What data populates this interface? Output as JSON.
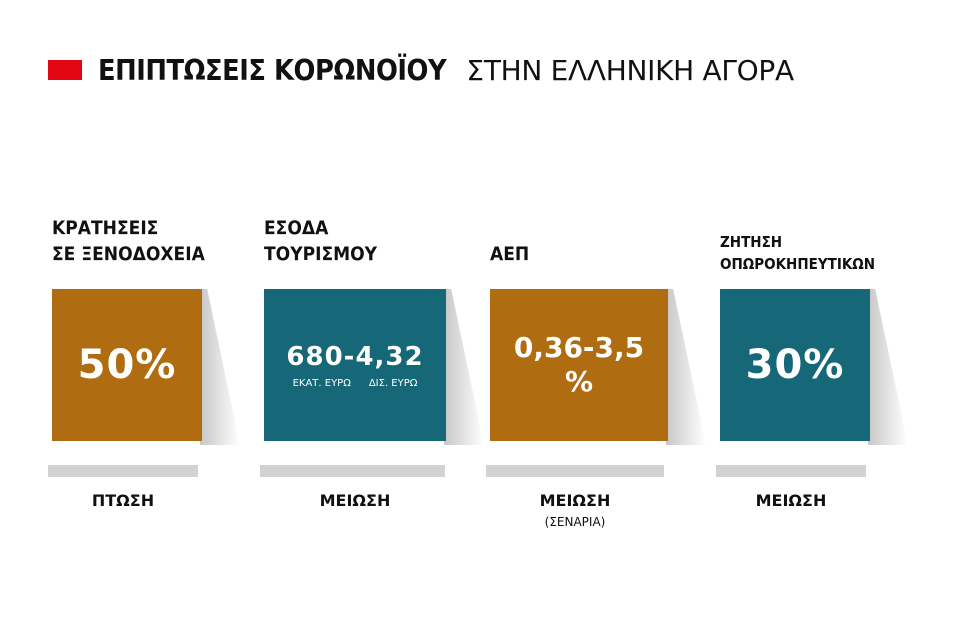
{
  "title": {
    "bold": "ΕΠΙΠΤΩΣΕΙΣ ΚΟΡΩΝΟΪΟΥ",
    "light": "ΣΤΗΝ ΕΛΛΗΝΙΚΗ ΑΓΟΡΑ"
  },
  "colors": {
    "accent_red": "#e30613",
    "orange": "#b06c10",
    "teal": "#166777",
    "bar_gray": "#d2d2d2"
  },
  "cards": [
    {
      "heading_line1": "ΚΡΑΤΗΣΕΙΣ",
      "heading_line2": "ΣΕ ΞΕΝΟΔΟΧΕΙΑ",
      "value": "50%",
      "label": "ΠΤΩΣΗ"
    },
    {
      "heading_line1": "ΕΣΟΔΑ",
      "heading_line2": "ΤΟΥΡΙΣΜΟΥ",
      "value": "680-4,32",
      "unit1": "ΕΚΑΤ. ΕΥΡΩ",
      "unit2": "ΔΙΣ. ΕΥΡΩ",
      "label": "ΜΕΙΩΣΗ"
    },
    {
      "heading_line1": "ΑΕΠ",
      "value_line1": "0,36-3,5",
      "value_line2": "%",
      "label": "ΜΕΙΩΣΗ",
      "sub_label": "(ΣΕΝΑΡΙΑ)"
    },
    {
      "heading_line1": "ΖΗΤΗΣΗ",
      "heading_line2": "ΟΠΩΡΟΚΗΠΕΥΤΙΚΩΝ",
      "value": "30%",
      "label": "ΜΕΙΩΣΗ"
    }
  ]
}
